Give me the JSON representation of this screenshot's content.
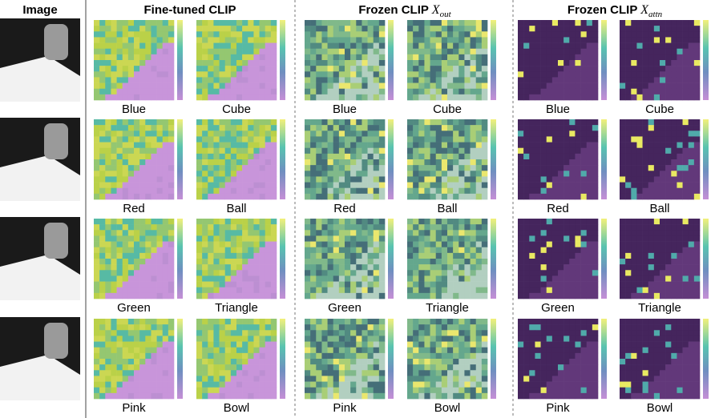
{
  "headers": [
    {
      "text": "Image"
    },
    {
      "text": "Fine-tuned CLIP"
    },
    {
      "text": "Frozen CLIP ",
      "symbol": "X",
      "sub": "out"
    },
    {
      "text": "Frozen CLIP ",
      "symbol": "X",
      "sub": "attn"
    }
  ],
  "rows": [
    {
      "words": [
        "Blue",
        "Cube"
      ]
    },
    {
      "words": [
        "Red",
        "Ball"
      ]
    },
    {
      "words": [
        "Green",
        "Triangle"
      ]
    },
    {
      "words": [
        "Pink",
        "Bowl"
      ]
    }
  ]
}
